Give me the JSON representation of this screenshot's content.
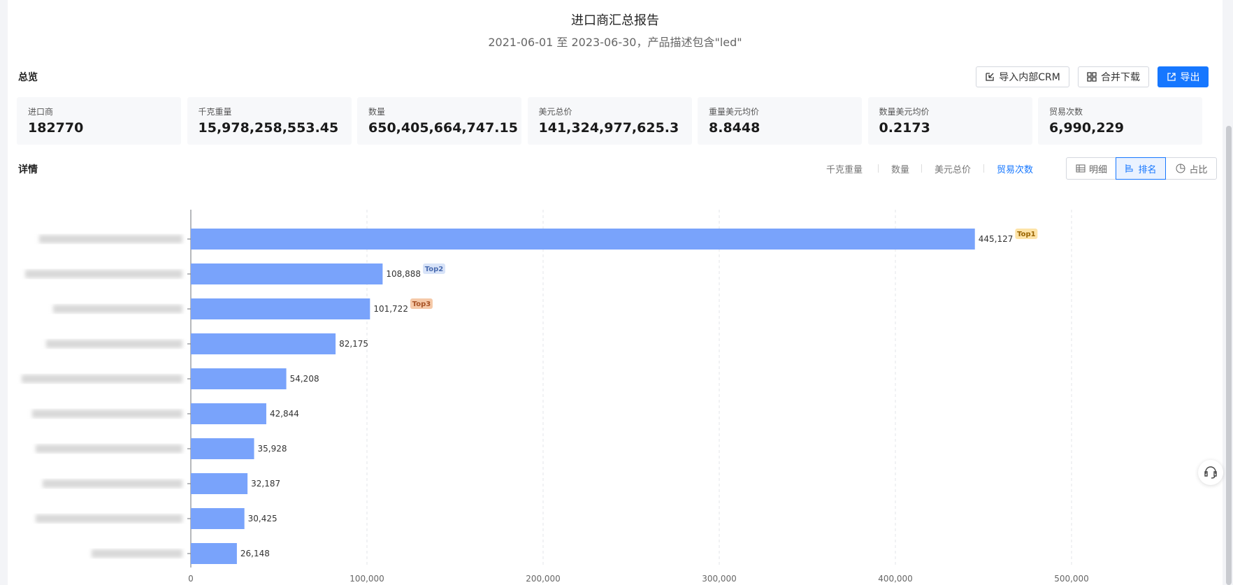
{
  "header": {
    "title": "进口商汇总报告",
    "subtitle": "2021-06-01 至 2023-06-30，产品描述包含\"led\""
  },
  "overview": {
    "title": "总览",
    "buttons": [
      "导入内部CRM",
      "合并下载",
      "导出"
    ],
    "cards": [
      {
        "label": "进口商",
        "value": "182770"
      },
      {
        "label": "千克重量",
        "value": "15,978,258,553.45"
      },
      {
        "label": "数量",
        "value": "650,405,664,747.15"
      },
      {
        "label": "美元总价",
        "value": "141,324,977,625.3"
      },
      {
        "label": "重量美元均价",
        "value": "8.8448"
      },
      {
        "label": "数量美元均价",
        "value": "0.2173"
      },
      {
        "label": "贸易次数",
        "value": "6,990,229"
      }
    ]
  },
  "details": {
    "title": "详情",
    "metrics": [
      "千克重量",
      "数量",
      "美元总价",
      "贸易次数"
    ],
    "views": [
      "明细",
      "排名",
      "占比"
    ]
  },
  "chart_data": {
    "type": "bar",
    "orientation": "horizontal",
    "categories": [
      null,
      null,
      null,
      null,
      null,
      null,
      null,
      null,
      null,
      null
    ],
    "values": [
      445127,
      108888,
      101722,
      82175,
      54208,
      42844,
      35928,
      32187,
      30425,
      26148
    ],
    "value_labels": [
      "445,127",
      "108,888",
      "101,722",
      "82,175",
      "54,208",
      "42,844",
      "35,928",
      "32,187",
      "30,425",
      "26,148"
    ],
    "badges": [
      "Top1",
      "Top2",
      "Top3"
    ],
    "color": "#79a3fb",
    "xlim": [
      0,
      500000
    ],
    "xticks": [
      0,
      {
        "value": 100000,
        "label": "100,000"
      },
      {
        "value": 200000,
        "label": "200,000"
      },
      {
        "value": 300000,
        "label": "300,000"
      },
      {
        "value": 400000,
        "label": "400,000"
      },
      {
        "value": 500000,
        "label": "500,000"
      }
    ],
    "grid": true
  }
}
